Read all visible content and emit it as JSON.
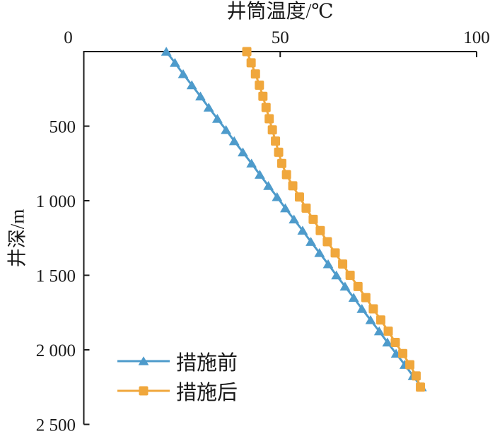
{
  "chart_data": {
    "type": "line",
    "title": "",
    "xlabel": "井筒温度/℃",
    "ylabel": "井深/m",
    "x_axis": {
      "min": 0,
      "max": 100,
      "position": "top",
      "ticks": [
        0,
        50,
        100
      ],
      "tick_labels": [
        "0",
        "50",
        "100"
      ]
    },
    "y_axis": {
      "min": 0,
      "max": 2500,
      "inverted": true,
      "position": "left",
      "ticks": [
        500,
        1000,
        1500,
        2000,
        2500
      ],
      "tick_labels": [
        "500",
        "1 000",
        "1 500",
        "2 000",
        "2 500"
      ]
    },
    "grid": false,
    "legend": {
      "position": "inside-bottom-left",
      "items": [
        "措施前",
        "措施后"
      ]
    },
    "depths_m": [
      0,
      75,
      150,
      225,
      300,
      375,
      450,
      525,
      600,
      675,
      750,
      825,
      900,
      975,
      1050,
      1125,
      1200,
      1275,
      1350,
      1425,
      1500,
      1575,
      1650,
      1725,
      1800,
      1875,
      1950,
      2025,
      2100,
      2175,
      2250
    ],
    "series": [
      {
        "name": "措施前",
        "color": "#4E9BCB",
        "marker": "triangle",
        "temperatures_c": [
          21.0,
          23.2,
          25.3,
          27.5,
          29.7,
          31.8,
          34.0,
          36.2,
          38.3,
          40.5,
          42.7,
          44.8,
          47.0,
          49.2,
          51.3,
          53.5,
          55.7,
          57.8,
          60.0,
          62.2,
          64.3,
          66.5,
          68.7,
          70.8,
          73.0,
          75.2,
          77.3,
          79.5,
          81.7,
          83.8,
          86.0
        ]
      },
      {
        "name": "措施后",
        "color": "#F0A73C",
        "marker": "square",
        "temperatures_c": [
          41.5,
          42.6,
          43.7,
          44.7,
          45.6,
          46.4,
          47.2,
          48.0,
          48.8,
          49.6,
          50.4,
          51.6,
          53.2,
          54.9,
          56.6,
          58.4,
          60.2,
          62.0,
          64.0,
          65.9,
          67.8,
          69.8,
          71.8,
          73.7,
          75.6,
          77.5,
          79.3,
          81.2,
          83.0,
          84.6,
          85.7
        ]
      }
    ]
  },
  "colors": {
    "axis": "#1a1a1a",
    "background": "#ffffff",
    "series_before": "#4E9BCB",
    "series_after": "#F0A73C"
  }
}
